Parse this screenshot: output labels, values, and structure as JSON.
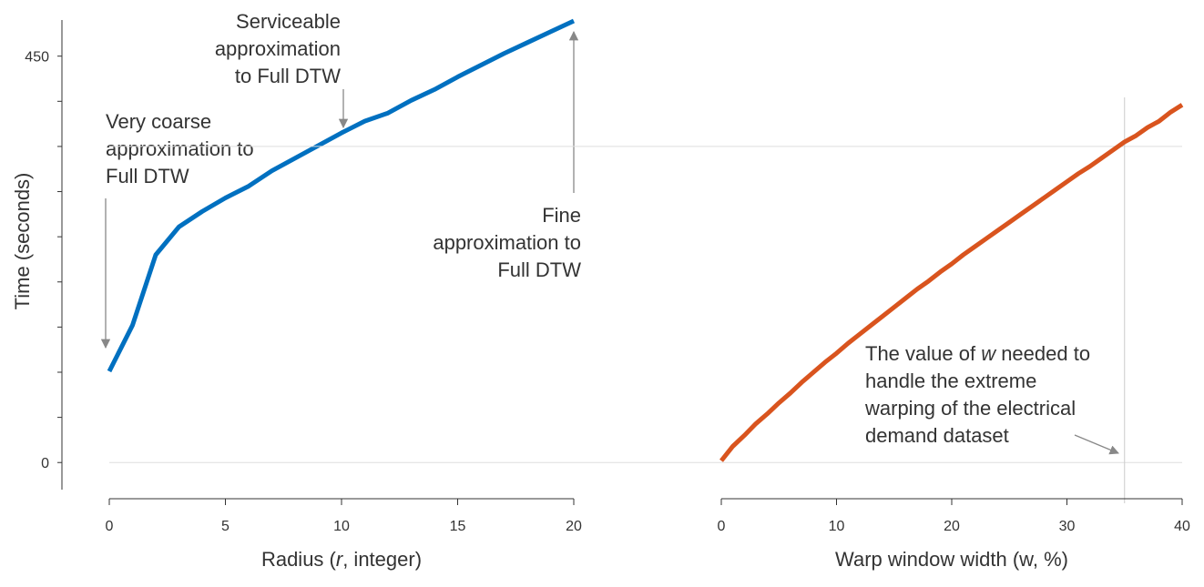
{
  "chart_data": [
    {
      "type": "line",
      "ylabel": "Time (seconds)",
      "xlabel": [
        "Radius (",
        {
          "text": "r",
          "italic": true
        },
        ", integer)"
      ],
      "x": [
        0,
        1,
        2,
        3,
        4,
        5,
        6,
        7,
        8,
        9,
        10,
        11,
        12,
        13,
        14,
        15,
        16,
        17,
        18,
        19,
        20
      ],
      "values": [
        101,
        152,
        230,
        261,
        278,
        293,
        306,
        323,
        337,
        351,
        365,
        378,
        387,
        401,
        413,
        427,
        440,
        453,
        465,
        477,
        489
      ],
      "color": "#0070c0",
      "xlim": [
        0,
        20
      ],
      "xticks": [
        0,
        5,
        10,
        15,
        20
      ],
      "ylim": [
        -30,
        490
      ],
      "yticks": [
        0,
        450
      ],
      "yminorticks": [
        50,
        100,
        150,
        200,
        250,
        300,
        350,
        400
      ],
      "annotations": [
        {
          "lines": [
            "Very coarse",
            "approximation to",
            "Full DTW"
          ]
        },
        {
          "lines": [
            "Serviceable",
            "approximation",
            "to Full DTW"
          ]
        },
        {
          "lines": [
            "Fine",
            "approximation to",
            "Full DTW"
          ]
        }
      ]
    },
    {
      "type": "line",
      "xlabel": [
        "Warp window width (w, %)"
      ],
      "x": [
        0,
        1,
        2,
        3,
        4,
        5,
        6,
        7,
        8,
        9,
        10,
        11,
        12,
        13,
        14,
        15,
        16,
        17,
        18,
        19,
        20,
        21,
        22,
        23,
        24,
        25,
        26,
        27,
        28,
        29,
        30,
        31,
        32,
        33,
        34,
        35,
        36,
        37,
        38,
        39,
        40
      ],
      "values": [
        2,
        18,
        30,
        43,
        54,
        66,
        77,
        89,
        100,
        111,
        121,
        132,
        142,
        152,
        162,
        172,
        182,
        192,
        201,
        211,
        220,
        230,
        239,
        248,
        257,
        266,
        275,
        284,
        293,
        302,
        311,
        320,
        328,
        337,
        346,
        355,
        362,
        371,
        378,
        388,
        396
      ],
      "color": "#d9541e",
      "xlim": [
        0,
        40
      ],
      "xticks": [
        0,
        10,
        20,
        30,
        40
      ],
      "ylim": [
        -30,
        490
      ],
      "reference_x": 35,
      "reference_y": 350,
      "annotations": [
        {
          "lines": [
            [
              "The value of ",
              {
                "text": "w",
                "italic": true
              },
              " needed to"
            ],
            "handle the extreme",
            "warping of the electrical",
            "demand dataset"
          ]
        }
      ]
    }
  ]
}
